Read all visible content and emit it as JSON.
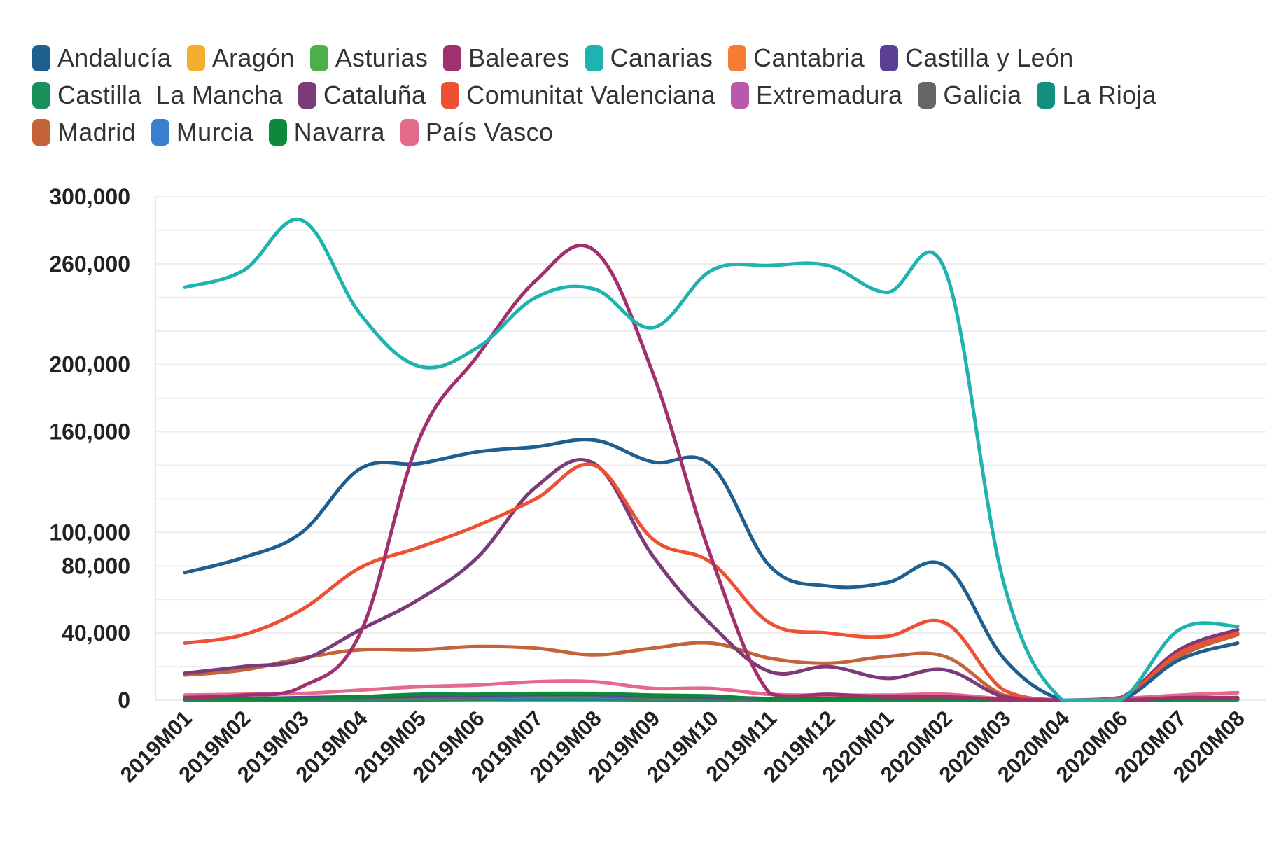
{
  "chart_data": {
    "type": "line",
    "title": "",
    "xlabel": "",
    "ylabel": "",
    "ylim": [
      0,
      300000
    ],
    "grid": true,
    "legend_position": "top",
    "categories": [
      "2019M01",
      "2019M02",
      "2019M03",
      "2019M04",
      "2019M05",
      "2019M06",
      "2019M07",
      "2019M08",
      "2019M09",
      "2019M10",
      "2019M11",
      "2019M12",
      "2020M01",
      "2020M02",
      "2020M03",
      "2020M04",
      "2020M06",
      "2020M07",
      "2020M08"
    ],
    "y_ticks": [
      {
        "value": 0,
        "label": "0"
      },
      {
        "value": 40000,
        "label": "40,000"
      },
      {
        "value": 80000,
        "label": "80,000"
      },
      {
        "value": 100000,
        "label": "100,000"
      },
      {
        "value": 160000,
        "label": "160,000"
      },
      {
        "value": 200000,
        "label": "200,000"
      },
      {
        "value": 260000,
        "label": "260,000"
      },
      {
        "value": 300000,
        "label": "300,000"
      }
    ],
    "series": [
      {
        "name": "Andalucía",
        "color": "#1f5f8f",
        "values": [
          76000,
          85000,
          100000,
          138000,
          141000,
          148000,
          151000,
          155000,
          142000,
          140000,
          80000,
          68000,
          70000,
          80000,
          25000,
          0,
          0,
          24000,
          34000
        ]
      },
      {
        "name": "Aragón",
        "color": "#f5ad2e",
        "values": [
          1000,
          1000,
          1000,
          1500,
          1500,
          2000,
          2000,
          2000,
          1500,
          1500,
          1000,
          800,
          800,
          800,
          300,
          0,
          0,
          800,
          1000
        ]
      },
      {
        "name": "Asturias",
        "color": "#4bb04a",
        "values": [
          500,
          500,
          500,
          1000,
          1500,
          2000,
          2500,
          2500,
          1500,
          1000,
          500,
          300,
          300,
          300,
          100,
          0,
          0,
          1000,
          1000
        ]
      },
      {
        "name": "Baleares",
        "color": "#a0306e",
        "values": [
          1500,
          3000,
          8000,
          40000,
          155000,
          205000,
          250000,
          268000,
          195000,
          85000,
          4000,
          3500,
          2000,
          2000,
          500,
          0,
          0,
          1500,
          1500
        ]
      },
      {
        "name": "Canarias",
        "color": "#1fb3b0",
        "values": [
          246000,
          256000,
          286000,
          230000,
          199000,
          210000,
          240000,
          245000,
          222000,
          256000,
          259000,
          259000,
          243000,
          256000,
          70000,
          0,
          0,
          42000,
          44000
        ]
      },
      {
        "name": "Cantabria",
        "color": "#f57c32",
        "values": [
          500,
          500,
          500,
          1000,
          1000,
          1500,
          2000,
          2000,
          1000,
          1000,
          500,
          300,
          300,
          300,
          100,
          0,
          0,
          1000,
          1500
        ]
      },
      {
        "name": "Castilla y León",
        "color": "#5a3f94",
        "values": [
          1000,
          1000,
          1500,
          2000,
          2500,
          3000,
          3500,
          3500,
          2500,
          2000,
          1000,
          800,
          800,
          800,
          300,
          0,
          0,
          1000,
          1500
        ]
      },
      {
        "name": "Castilla  La Mancha",
        "color": "#1a8f5a",
        "values": [
          300,
          300,
          300,
          500,
          500,
          800,
          1000,
          1000,
          500,
          500,
          300,
          200,
          200,
          200,
          100,
          0,
          0,
          500,
          500
        ]
      },
      {
        "name": "Cataluña",
        "color": "#7a3b78",
        "values": [
          16000,
          20000,
          24000,
          42000,
          60000,
          85000,
          127000,
          141000,
          86000,
          45000,
          17000,
          20000,
          13000,
          18000,
          2000,
          0,
          1500,
          30000,
          42000
        ]
      },
      {
        "name": "Comunitat Valenciana",
        "color": "#ee5034",
        "values": [
          34000,
          39000,
          54000,
          79000,
          91000,
          104000,
          120000,
          140000,
          96000,
          82000,
          46000,
          40000,
          38000,
          46000,
          6000,
          0,
          1000,
          28000,
          40000
        ]
      },
      {
        "name": "Extremadura",
        "color": "#b55aaa",
        "values": [
          200,
          200,
          200,
          300,
          300,
          500,
          500,
          500,
          300,
          300,
          200,
          100,
          100,
          100,
          50,
          0,
          0,
          200,
          300
        ]
      },
      {
        "name": "Galicia",
        "color": "#666666",
        "values": [
          500,
          500,
          800,
          1000,
          1500,
          2000,
          2500,
          2500,
          1500,
          1000,
          500,
          400,
          400,
          400,
          100,
          0,
          0,
          1000,
          1500
        ]
      },
      {
        "name": "La Rioja",
        "color": "#128f80",
        "values": [
          100,
          100,
          100,
          200,
          200,
          300,
          300,
          300,
          200,
          200,
          100,
          100,
          100,
          100,
          50,
          0,
          0,
          100,
          200
        ]
      },
      {
        "name": "Madrid",
        "color": "#c4633a",
        "values": [
          15000,
          18000,
          25000,
          30000,
          30000,
          32000,
          31000,
          27000,
          31000,
          34000,
          25000,
          22000,
          26000,
          26000,
          3000,
          0,
          0,
          26000,
          39000
        ]
      },
      {
        "name": "Murcia",
        "color": "#3b7fd0",
        "values": [
          500,
          500,
          800,
          1000,
          1000,
          1500,
          2000,
          2000,
          1000,
          1000,
          500,
          400,
          400,
          400,
          100,
          0,
          0,
          500,
          1000
        ]
      },
      {
        "name": "Navarra",
        "color": "#0a8a3a",
        "values": [
          500,
          500,
          800,
          2000,
          3500,
          3500,
          4000,
          4000,
          3000,
          2500,
          500,
          400,
          400,
          400,
          100,
          0,
          0,
          500,
          1000
        ]
      },
      {
        "name": "País Vasco",
        "color": "#e36a8a",
        "values": [
          3000,
          3500,
          4000,
          6000,
          8000,
          9000,
          11000,
          11000,
          7000,
          7000,
          3500,
          3000,
          3000,
          3500,
          800,
          0,
          1000,
          3000,
          4500
        ]
      }
    ]
  },
  "legend_rows": [
    [
      0,
      1,
      2,
      3,
      4,
      5,
      6
    ],
    [
      7,
      8,
      9,
      10,
      11,
      12
    ],
    [
      13,
      14,
      15,
      16
    ]
  ]
}
